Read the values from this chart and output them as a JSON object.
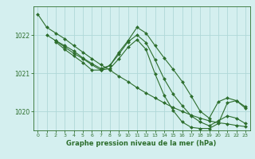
{
  "background_color": "#d4efef",
  "grid_color": "#b0d8d8",
  "line_color": "#2d6e2d",
  "marker_color": "#2d6e2d",
  "xlabel": "Graphe pression niveau de la mer (hPa)",
  "xlabel_color": "#2d6e2d",
  "tick_color": "#2d6e2d",
  "ylim": [
    1019.5,
    1022.75
  ],
  "xlim": [
    -0.5,
    23.5
  ],
  "yticks": [
    1020,
    1021,
    1022
  ],
  "xticks": [
    0,
    1,
    2,
    3,
    4,
    5,
    6,
    7,
    8,
    9,
    10,
    11,
    12,
    13,
    14,
    15,
    16,
    17,
    18,
    19,
    20,
    21,
    22,
    23
  ],
  "series": [
    {
      "x": [
        0,
        1,
        2,
        3,
        4,
        5,
        6,
        7,
        8,
        9,
        10,
        11,
        12,
        13,
        14,
        15,
        16,
        17,
        18,
        19,
        20,
        21,
        22,
        23
      ],
      "y": [
        1022.55,
        1022.2,
        1022.05,
        1021.9,
        1021.72,
        1021.55,
        1021.38,
        1021.22,
        1021.08,
        1020.92,
        1020.78,
        1020.62,
        1020.48,
        1020.35,
        1020.22,
        1020.1,
        1020.0,
        1019.9,
        1019.82,
        1019.75,
        1019.7,
        1019.67,
        1019.63,
        1019.6
      ]
    },
    {
      "x": [
        1,
        2,
        3,
        4,
        5,
        6,
        7,
        8,
        9,
        10,
        11,
        12,
        13,
        14,
        15,
        16,
        17,
        18,
        19,
        20,
        21,
        22,
        23
      ],
      "y": [
        1022.0,
        1021.85,
        1021.72,
        1021.58,
        1021.4,
        1021.25,
        1021.12,
        1021.2,
        1021.55,
        1021.85,
        1022.2,
        1022.05,
        1021.72,
        1021.4,
        1021.1,
        1020.78,
        1020.4,
        1020.0,
        1019.82,
        1020.25,
        1020.35,
        1020.28,
        1020.12
      ]
    },
    {
      "x": [
        2,
        3,
        4,
        5,
        6,
        7,
        8,
        9,
        10,
        11,
        12,
        13,
        14,
        15,
        16,
        17,
        18,
        19,
        20,
        21,
        22,
        23
      ],
      "y": [
        1021.85,
        1021.68,
        1021.52,
        1021.38,
        1021.22,
        1021.08,
        1021.2,
        1021.5,
        1021.82,
        1022.0,
        1021.8,
        1021.35,
        1020.85,
        1020.45,
        1020.15,
        1019.88,
        1019.72,
        1019.62,
        1019.75,
        1019.88,
        1019.82,
        1019.68
      ]
    },
    {
      "x": [
        2,
        3,
        4,
        5,
        6,
        7,
        8,
        9,
        10,
        11,
        12,
        13,
        14,
        15,
        16,
        17,
        18,
        19,
        20,
        21,
        22,
        23
      ],
      "y": [
        1021.82,
        1021.62,
        1021.45,
        1021.28,
        1021.08,
        1021.08,
        1021.12,
        1021.38,
        1021.68,
        1021.88,
        1021.62,
        1020.98,
        1020.42,
        1020.02,
        1019.72,
        1019.58,
        1019.55,
        1019.55,
        1019.68,
        1020.22,
        1020.28,
        1020.08
      ]
    }
  ]
}
